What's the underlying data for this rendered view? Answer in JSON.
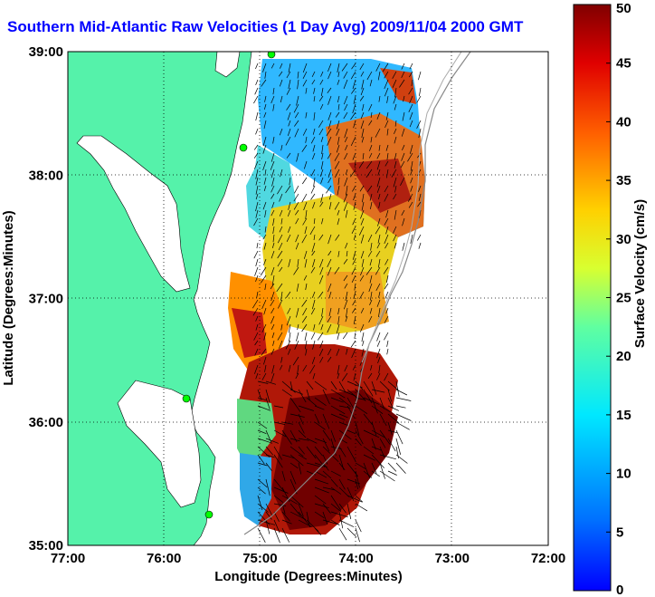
{
  "title": "Southern Mid-Atlantic Raw Velocities (1 Day Avg) 2009/11/04 2000 GMT",
  "map": {
    "x_axis_label": "Longitude (Degrees:Minutes)",
    "y_axis_label": "Latitude (Degrees:Minutes)",
    "x_ticks": [
      "77:00",
      "76:00",
      "75:00",
      "74:00",
      "73:00",
      "72:00"
    ],
    "y_ticks": [
      "39:00",
      "38:00",
      "37:00",
      "36:00",
      "35:00"
    ],
    "lon_range": [
      -77,
      -72
    ],
    "lat_range": [
      35,
      39
    ],
    "grid": "dotted",
    "land_color": "#55f2aa"
  },
  "colorbar": {
    "label": "Surface Velocity (cm/s)",
    "ticks": [
      "0",
      "5",
      "10",
      "15",
      "20",
      "25",
      "30",
      "35",
      "40",
      "45",
      "50"
    ],
    "range": [
      0,
      50
    ],
    "colormap": "jet"
  }
}
